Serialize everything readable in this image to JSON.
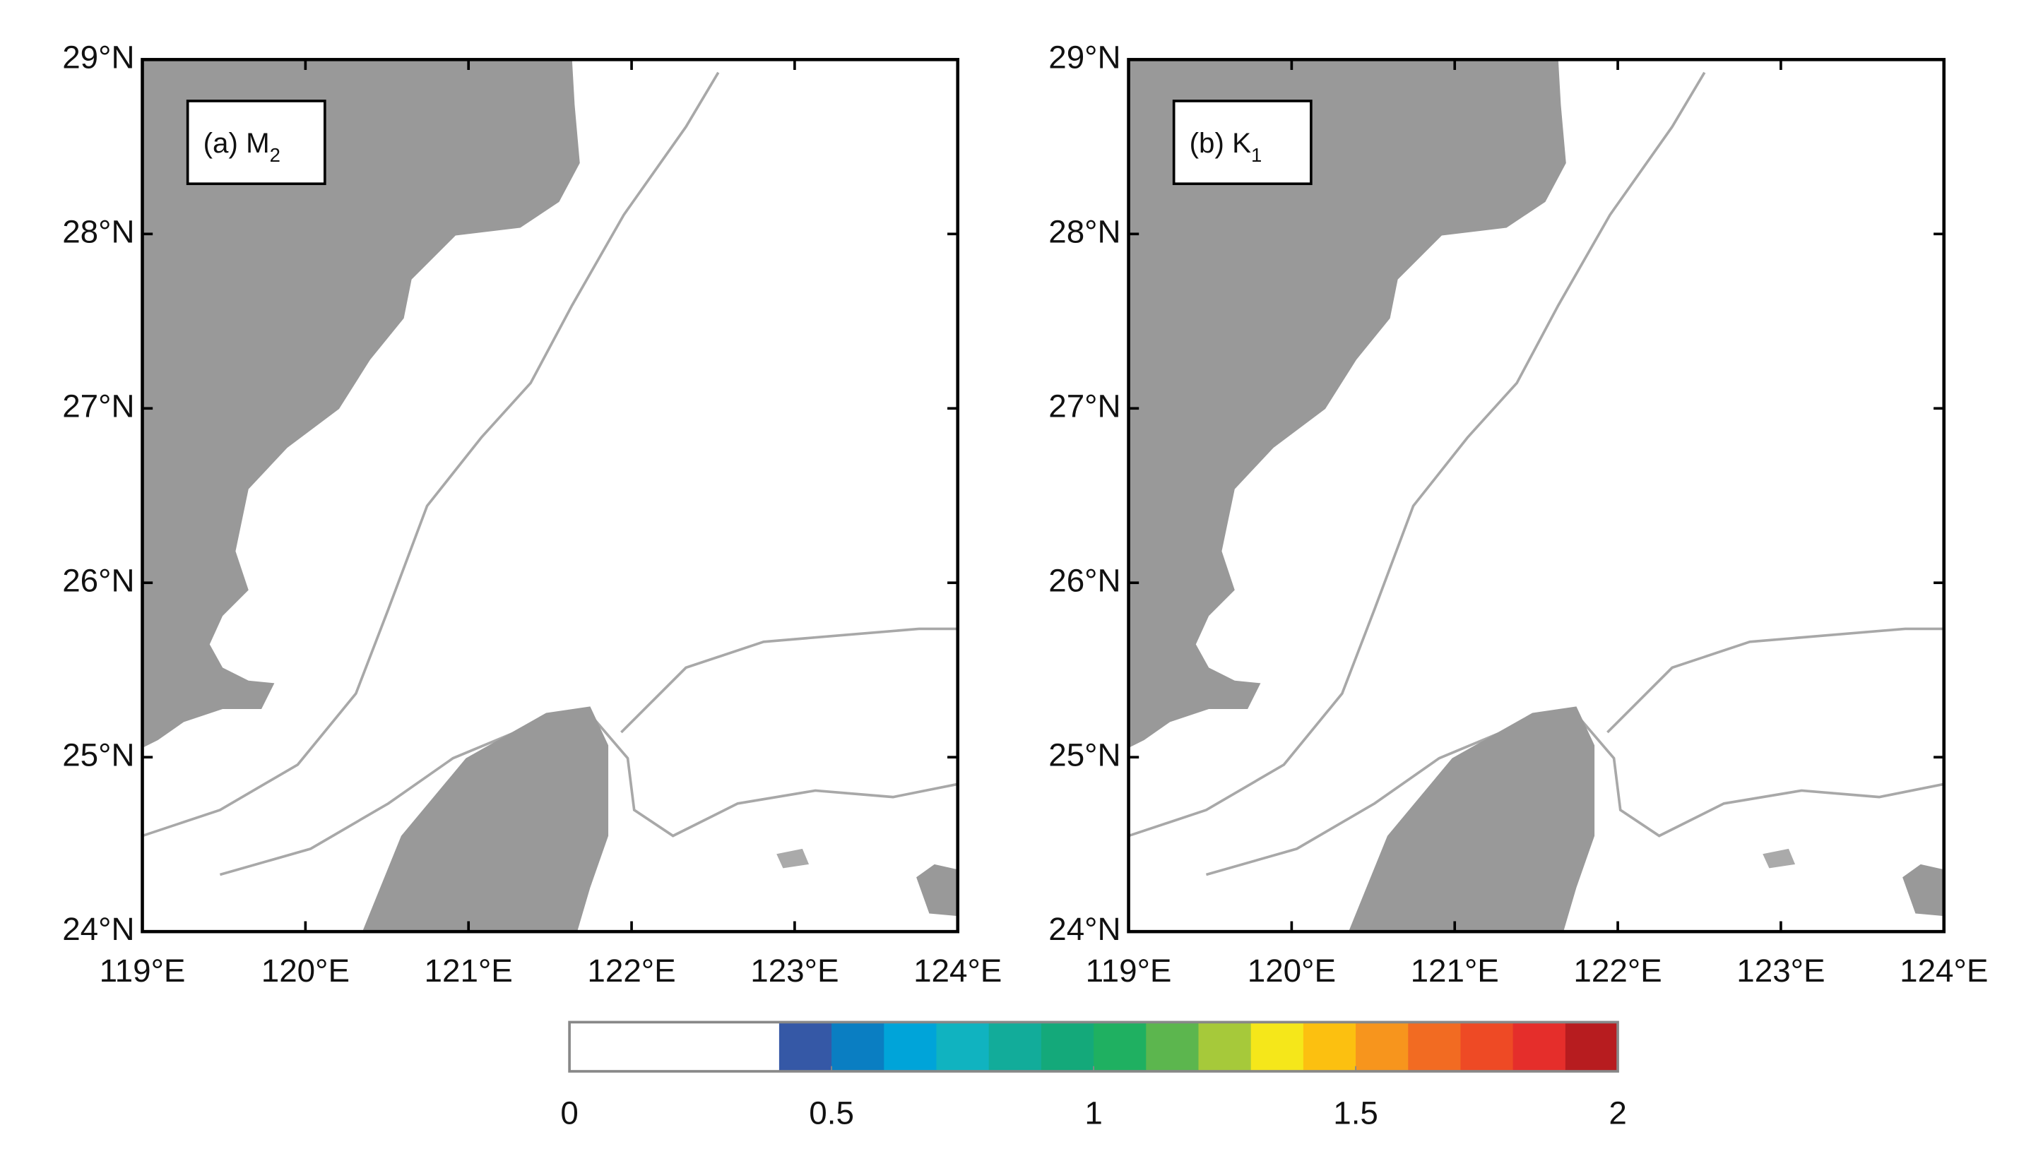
{
  "panels": [
    {
      "label": {
        "text": "(a) M",
        "subscript": "2"
      },
      "xlim": [
        119,
        124
      ],
      "ylim": [
        24,
        29
      ],
      "xticks": [
        {
          "value": 119,
          "label": "119°E"
        },
        {
          "value": 120,
          "label": "120°E"
        },
        {
          "value": 121,
          "label": "121°E"
        },
        {
          "value": 122,
          "label": "122°E"
        },
        {
          "value": 123,
          "label": "123°E"
        },
        {
          "value": 124,
          "label": "124°E"
        }
      ],
      "yticks": [
        {
          "value": 24,
          "label": "24°N"
        },
        {
          "value": 25,
          "label": "25°N"
        },
        {
          "value": 26,
          "label": "26°N"
        },
        {
          "value": 27,
          "label": "27°N"
        },
        {
          "value": 28,
          "label": "28°N"
        },
        {
          "value": 29,
          "label": "29°N"
        }
      ]
    },
    {
      "label": {
        "text": "(b) K",
        "subscript": "1"
      },
      "xlim": [
        119,
        124
      ],
      "ylim": [
        24,
        29
      ],
      "xticks": [
        {
          "value": 119,
          "label": "119°E"
        },
        {
          "value": 120,
          "label": "120°E"
        },
        {
          "value": 121,
          "label": "121°E"
        },
        {
          "value": 122,
          "label": "122°E"
        },
        {
          "value": 123,
          "label": "123°E"
        },
        {
          "value": 124,
          "label": "124°E"
        }
      ],
      "yticks": [
        {
          "value": 24,
          "label": "24°N"
        },
        {
          "value": 25,
          "label": "25°N"
        },
        {
          "value": 26,
          "label": "26°N"
        },
        {
          "value": 27,
          "label": "27°N"
        },
        {
          "value": 28,
          "label": "28°N"
        },
        {
          "value": 29,
          "label": "29°N"
        }
      ]
    }
  ],
  "colorbar": {
    "lim": [
      0,
      2
    ],
    "ticks": [
      0,
      0.5,
      1,
      1.5,
      2
    ],
    "boundaries": [
      0,
      0.4,
      0.5,
      0.6,
      0.7,
      0.8,
      0.9,
      1,
      1.1,
      1.2,
      1.3,
      1.4,
      1.5,
      1.6,
      1.7,
      1.8,
      1.9,
      2
    ],
    "colors": [
      "#ffffff",
      "#3558a6",
      "#0a7ec2",
      "#00a4d9",
      "#10b3c0",
      "#12ac9a",
      "#14a97a",
      "#1fb061",
      "#5cb64e",
      "#a6c93a",
      "#f5e71a",
      "#fcc010",
      "#f7951d",
      "#f26b22",
      "#ee4a25",
      "#e52e2b",
      "#b71c1f"
    ]
  }
}
